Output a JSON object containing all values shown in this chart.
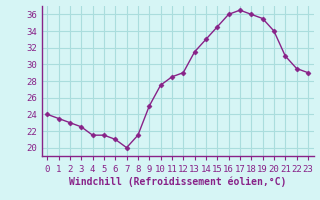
{
  "hours": [
    0,
    1,
    2,
    3,
    4,
    5,
    6,
    7,
    8,
    9,
    10,
    11,
    12,
    13,
    14,
    15,
    16,
    17,
    18,
    19,
    20,
    21,
    22,
    23
  ],
  "values": [
    24.0,
    23.5,
    23.0,
    22.5,
    21.5,
    21.5,
    21.0,
    20.0,
    21.5,
    25.0,
    27.5,
    28.5,
    29.0,
    31.5,
    33.0,
    34.5,
    36.0,
    36.5,
    36.0,
    35.5,
    34.0,
    31.0,
    29.5,
    29.0
  ],
  "line_color": "#882288",
  "marker": "D",
  "marker_size": 2.5,
  "bg_color": "#d6f5f5",
  "grid_color": "#aadddd",
  "xlabel": "Windchill (Refroidissement éolien,°C)",
  "xlabel_fontsize": 7,
  "tick_fontsize": 6.5,
  "ylim": [
    19,
    37
  ],
  "yticks": [
    20,
    22,
    24,
    26,
    28,
    30,
    32,
    34,
    36
  ],
  "xlim": [
    -0.5,
    23.5
  ],
  "axis_color": "#882288",
  "spine_color": "#882288",
  "linewidth": 1.0
}
